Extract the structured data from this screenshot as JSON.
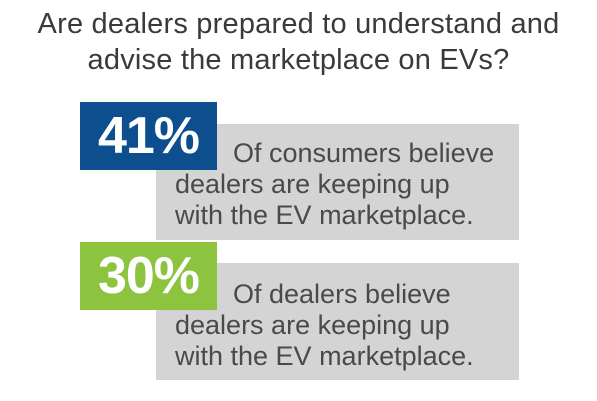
{
  "title": {
    "line1": "Are dealers prepared to understand and",
    "line2": "advise the marketplace on EVs?"
  },
  "stats": [
    {
      "value": "41%",
      "color": "#0c4e8e",
      "lines": [
        "Of consumers believe",
        "dealers are keeping up",
        "with the EV marketplace."
      ]
    },
    {
      "value": "30%",
      "color": "#8cc43f",
      "lines": [
        "Of dealers believe",
        "dealers are keeping up",
        "with the EV marketplace."
      ]
    }
  ]
}
